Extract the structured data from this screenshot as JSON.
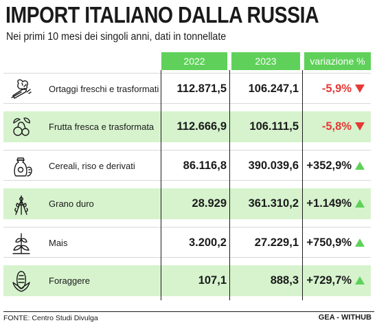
{
  "title": "IMPORT ITALIANO DALLA RUSSIA",
  "subtitle": "Nei primi 10 mesi dei singoli anni, dati in tonnellate",
  "chart_data": {
    "type": "table",
    "columns": [
      "2022",
      "2023",
      "variazione %"
    ],
    "rows": [
      {
        "label": "Ortaggi freschi e trasformati",
        "y2022": "112.871,5",
        "y2023": "106.247,1",
        "change": "-5,9%",
        "direction": "down",
        "icon": "vegetables-icon"
      },
      {
        "label": "Frutta fresca e trasformata",
        "y2022": "112.666,9",
        "y2023": "106.111,5",
        "change": "-5,8%",
        "direction": "down",
        "icon": "fruit-icon"
      },
      {
        "label": "Cereali, riso e derivati",
        "y2022": "86.116,8",
        "y2023": "390.039,6",
        "change": "+352,9%",
        "direction": "up",
        "icon": "grain-sack-icon"
      },
      {
        "label": "Grano duro",
        "y2022": "28.929",
        "y2023": "361.310,2",
        "change": "+1.149%",
        "direction": "up",
        "icon": "wheat-icon"
      },
      {
        "label": "Mais",
        "y2022": "3.200,2",
        "y2023": "27.229,1",
        "change": "+750,9%",
        "direction": "up",
        "icon": "corn-plant-icon"
      },
      {
        "label": "Foraggere",
        "y2022": "107,1",
        "y2023": "888,3",
        "change": "+729,7%",
        "direction": "up",
        "icon": "corn-cob-icon"
      }
    ]
  },
  "footer": {
    "source": "FONTE: Centro Studi Divulga",
    "credit": "GEA - WITHUB"
  },
  "colors": {
    "accent_green": "#5fd15a",
    "row_green": "#d6f3cd",
    "negative_red": "#e53935"
  }
}
